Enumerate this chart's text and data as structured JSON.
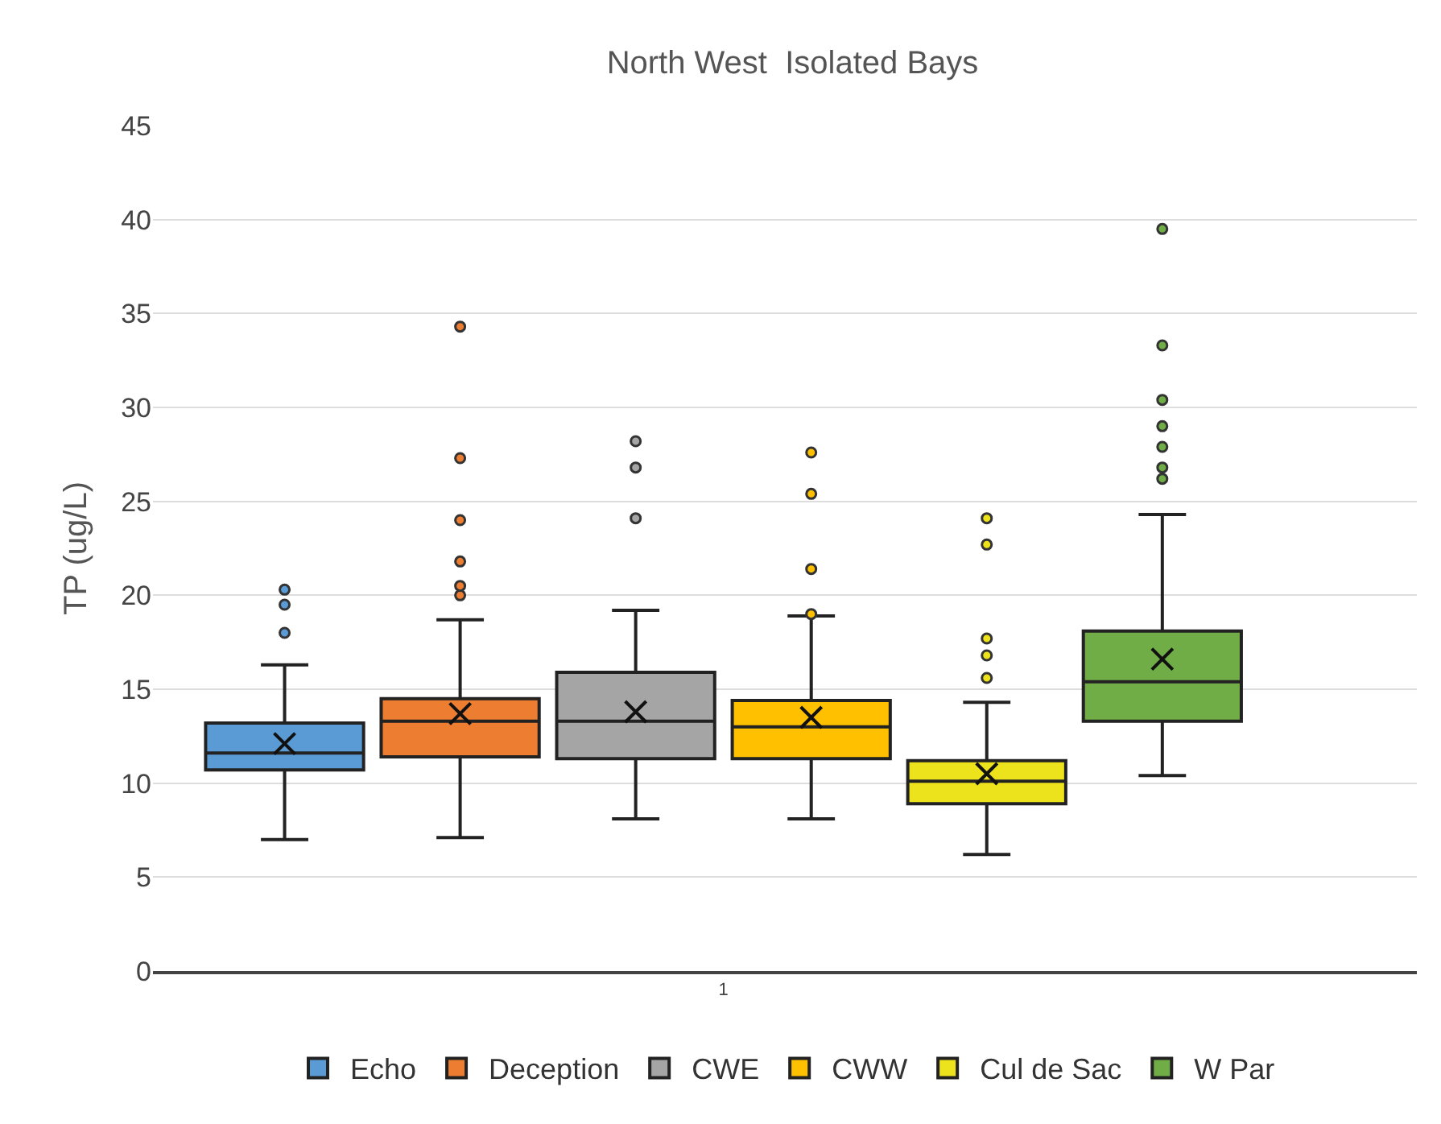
{
  "chart_data": {
    "type": "box",
    "title": "North West  Isolated Bays",
    "ylabel": "TP (ug/L)",
    "categories": [
      "1"
    ],
    "ylim": [
      0,
      45
    ],
    "yticks": [
      0,
      5,
      10,
      15,
      20,
      25,
      30,
      35,
      40,
      45
    ],
    "grid": "y",
    "legend": "bottom",
    "series": [
      {
        "name": "Echo",
        "color": "#5b9bd5",
        "boxes": [
          {
            "low": 7.0,
            "q1": 10.7,
            "median": 11.6,
            "q3": 13.2,
            "high": 16.3,
            "mean": 12.1,
            "outliers": [
              18.0,
              19.5,
              20.3
            ]
          }
        ]
      },
      {
        "name": "Deception",
        "color": "#ed7d31",
        "boxes": [
          {
            "low": 7.1,
            "q1": 11.4,
            "median": 13.3,
            "q3": 14.5,
            "high": 18.7,
            "mean": 13.7,
            "outliers": [
              20.0,
              20.5,
              21.8,
              24.0,
              27.3,
              34.3
            ]
          }
        ]
      },
      {
        "name": "CWE",
        "color": "#a5a5a5",
        "boxes": [
          {
            "low": 8.1,
            "q1": 11.3,
            "median": 13.3,
            "q3": 15.9,
            "high": 19.2,
            "mean": 13.8,
            "outliers": [
              24.1,
              26.8,
              28.2
            ]
          }
        ]
      },
      {
        "name": "CWW",
        "color": "#ffc000",
        "boxes": [
          {
            "low": 8.1,
            "q1": 11.3,
            "median": 13.0,
            "q3": 14.4,
            "high": 18.9,
            "mean": 13.5,
            "outliers": [
              19.0,
              21.4,
              25.4,
              27.6
            ]
          }
        ]
      },
      {
        "name": "Cul de Sac",
        "color": "#ede31c",
        "boxes": [
          {
            "low": 6.2,
            "q1": 8.9,
            "median": 10.1,
            "q3": 11.2,
            "high": 14.3,
            "mean": 10.5,
            "outliers": [
              15.6,
              16.8,
              17.7,
              22.7,
              24.1
            ]
          }
        ]
      },
      {
        "name": "W Par",
        "color": "#70ad47",
        "boxes": [
          {
            "low": 10.4,
            "q1": 13.3,
            "median": 15.4,
            "q3": 18.1,
            "high": 24.3,
            "mean": 16.6,
            "outliers": [
              26.2,
              26.8,
              27.9,
              29.0,
              30.4,
              33.3,
              39.5
            ]
          }
        ]
      }
    ]
  }
}
